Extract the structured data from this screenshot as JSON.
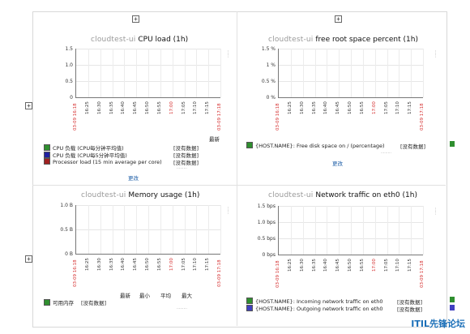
{
  "panels": {
    "cpu": {
      "title_ghost": "cloudtest-ui",
      "title": "CPU load (1h)",
      "y_ticks": [
        "1.5",
        "1.0",
        "0.5",
        "0"
      ],
      "x_start": "03-09 16:18",
      "x_ticks": [
        "16:25",
        "16:30",
        "16:35",
        "16:40",
        "16:45",
        "16:50",
        "16:55",
        "17:00",
        "17:05",
        "17:10",
        "17:15"
      ],
      "x_end": "03-09 17:18",
      "col_latest": "最新",
      "legend": [
        {
          "label": "CPU 负载 (CPU每分钟平均值)",
          "value": "[没有数据]",
          "color": "#2f8f2f"
        },
        {
          "label": "CPU 负载 (CPU每5分钟平均值)",
          "value": "[没有数据]",
          "color": "#2020a0"
        },
        {
          "label": "Processor load (15 min average per core)",
          "value": "[没有数据]",
          "color": "#a02020"
        }
      ],
      "edit_label": "更改"
    },
    "disk": {
      "title_ghost": "cloudtest-ui",
      "title": "free root space percent (1h)",
      "y_ticks": [
        "1.5 %",
        "1 %",
        "0.5 %",
        "0 %"
      ],
      "x_start": "03-09 16:18",
      "x_ticks": [
        "16:25",
        "16:30",
        "16:35",
        "16:40",
        "16:45",
        "16:50",
        "16:55",
        "17:00",
        "17:05",
        "17:10",
        "17:15"
      ],
      "x_end": "03-09 17:18",
      "legend": [
        {
          "label": "{HOST.NAME}: Free disk space on / (percentage)",
          "value": "[没有数据]",
          "color": "#2f8f2f"
        }
      ],
      "edit_label": "更改"
    },
    "mem": {
      "title_ghost": "cloudtest-ui",
      "title": "Memory usage (1h)",
      "y_ticks": [
        "1.0 B",
        "0.5 B",
        "0 B"
      ],
      "x_start": "03-09 16:18",
      "x_ticks": [
        "16:25",
        "16:30",
        "16:35",
        "16:40",
        "16:45",
        "16:50",
        "16:55",
        "17:00",
        "17:05",
        "17:10",
        "17:15"
      ],
      "x_end": "03-09 17:18",
      "cols": [
        "最新",
        "最小",
        "平均",
        "最大"
      ],
      "legend": [
        {
          "label": "可用内存",
          "value": "[没有数据]",
          "color": "#2f8f2f"
        }
      ]
    },
    "net": {
      "title_ghost": "cloudtest-ui",
      "title": "Network traffic on eth0 (1h)",
      "y_ticks": [
        "1.5 bps",
        "1.0 bps",
        "0.5 bps",
        "0 bps"
      ],
      "x_start": "03-09 16:18",
      "x_ticks": [
        "16:25",
        "16:30",
        "16:35",
        "16:40",
        "16:45",
        "16:50",
        "16:55",
        "17:00",
        "17:05",
        "17:10",
        "17:15"
      ],
      "x_end": "03-09 17:18",
      "legend": [
        {
          "label": "{HOST.NAME}: Incoming network traffic on eth0",
          "value": "[没有数据]",
          "color": "#2f8f2f"
        },
        {
          "label": "{HOST.NAME}: Outgoing network traffic on eth0",
          "value": "[没有数据]",
          "color": "#4040c0"
        }
      ]
    }
  },
  "watermark": "ITIL先锋论坛"
}
